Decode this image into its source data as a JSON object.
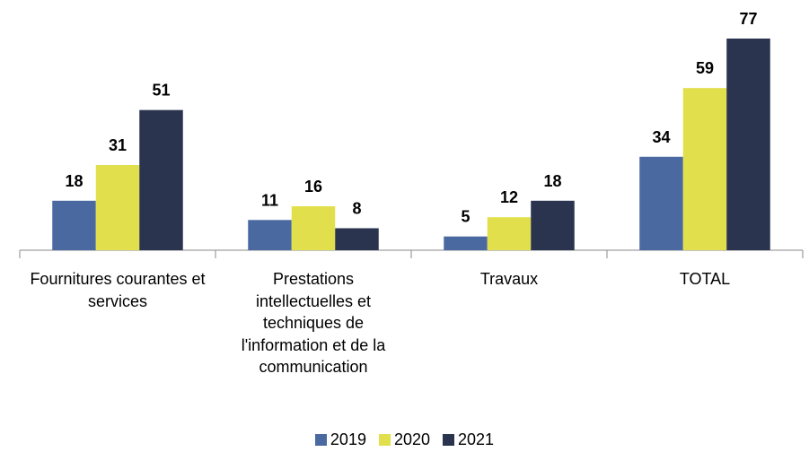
{
  "chart_data": {
    "type": "bar",
    "categories": [
      "Fournitures courantes et services",
      "Prestations intellectuelles et techniques de l'information et de la communication",
      "Travaux",
      "TOTAL"
    ],
    "series": [
      {
        "name": "2019",
        "color": "#4a69a0",
        "values": [
          18,
          11,
          5,
          34
        ]
      },
      {
        "name": "2020",
        "color": "#e1e04c",
        "values": [
          31,
          16,
          12,
          59
        ]
      },
      {
        "name": "2021",
        "color": "#2a344f",
        "values": [
          51,
          8,
          18,
          77
        ]
      }
    ],
    "legend": "bottom"
  }
}
